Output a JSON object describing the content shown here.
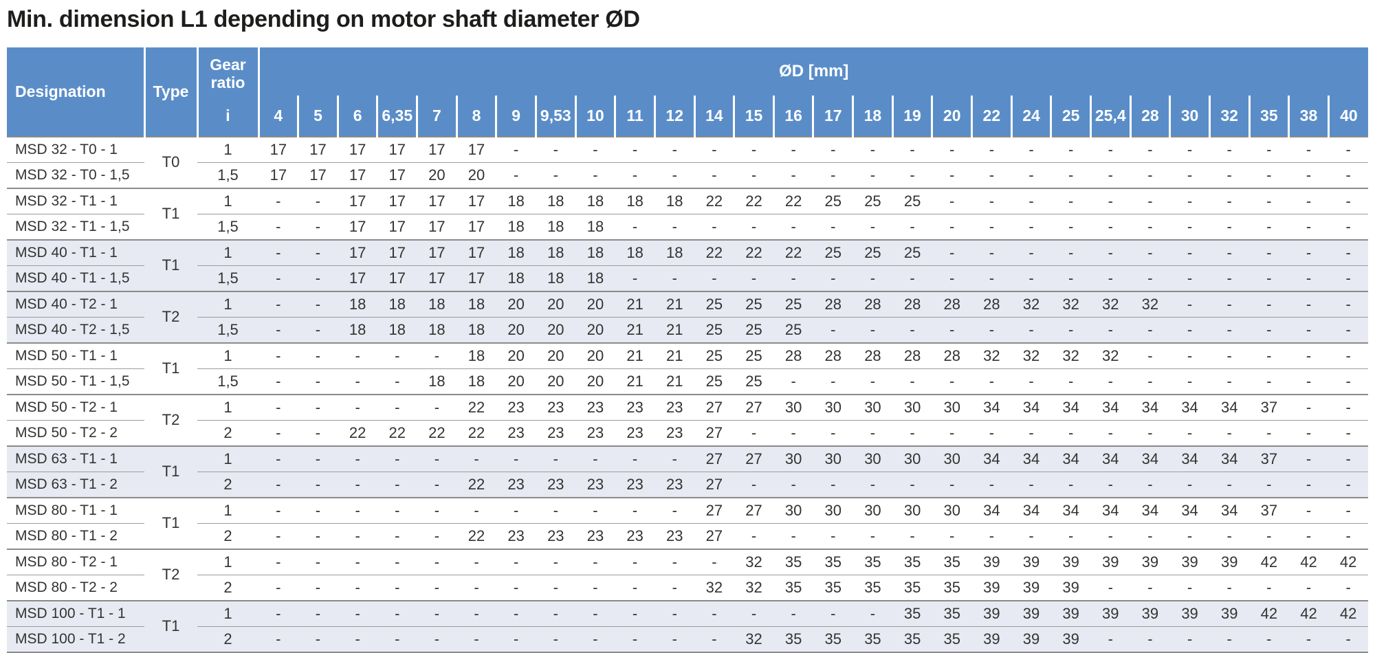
{
  "title": "Min. dimension L1 depending on motor shaft diameter ØD",
  "header": {
    "designation": "Designation",
    "type": "Type",
    "gear_ratio": "Gear ratio",
    "ratio_symbol": "i",
    "od_label": "ØD [mm]",
    "diameters": [
      "4",
      "5",
      "6",
      "6,35",
      "7",
      "8",
      "9",
      "9,53",
      "10",
      "11",
      "12",
      "14",
      "15",
      "16",
      "17",
      "18",
      "19",
      "20",
      "22",
      "24",
      "25",
      "25,4",
      "28",
      "30",
      "32",
      "35",
      "38",
      "40"
    ]
  },
  "groups": [
    {
      "type": "T0",
      "shaded": false,
      "rows": [
        {
          "designation": "MSD 32 - T0 - 1",
          "ratio": "1",
          "values": [
            "17",
            "17",
            "17",
            "17",
            "17",
            "17",
            "-",
            "-",
            "-",
            "-",
            "-",
            "-",
            "-",
            "-",
            "-",
            "-",
            "-",
            "-",
            "-",
            "-",
            "-",
            "-",
            "-",
            "-",
            "-",
            "-",
            "-",
            "-"
          ]
        },
        {
          "designation": "MSD 32 - T0 - 1,5",
          "ratio": "1,5",
          "values": [
            "17",
            "17",
            "17",
            "17",
            "20",
            "20",
            "-",
            "-",
            "-",
            "-",
            "-",
            "-",
            "-",
            "-",
            "-",
            "-",
            "-",
            "-",
            "-",
            "-",
            "-",
            "-",
            "-",
            "-",
            "-",
            "-",
            "-",
            "-"
          ]
        }
      ]
    },
    {
      "type": "T1",
      "shaded": false,
      "rows": [
        {
          "designation": "MSD 32 - T1 - 1",
          "ratio": "1",
          "values": [
            "-",
            "-",
            "17",
            "17",
            "17",
            "17",
            "18",
            "18",
            "18",
            "18",
            "18",
            "22",
            "22",
            "22",
            "25",
            "25",
            "25",
            "-",
            "-",
            "-",
            "-",
            "-",
            "-",
            "-",
            "-",
            "-",
            "-",
            "-"
          ]
        },
        {
          "designation": "MSD 32 - T1 - 1,5",
          "ratio": "1,5",
          "values": [
            "-",
            "-",
            "17",
            "17",
            "17",
            "17",
            "18",
            "18",
            "18",
            "-",
            "-",
            "-",
            "-",
            "-",
            "-",
            "-",
            "-",
            "-",
            "-",
            "-",
            "-",
            "-",
            "-",
            "-",
            "-",
            "-",
            "-",
            "-"
          ]
        }
      ]
    },
    {
      "type": "T1",
      "shaded": true,
      "rows": [
        {
          "designation": "MSD 40 - T1 - 1",
          "ratio": "1",
          "values": [
            "-",
            "-",
            "17",
            "17",
            "17",
            "17",
            "18",
            "18",
            "18",
            "18",
            "18",
            "22",
            "22",
            "22",
            "25",
            "25",
            "25",
            "-",
            "-",
            "-",
            "-",
            "-",
            "-",
            "-",
            "-",
            "-",
            "-",
            "-"
          ]
        },
        {
          "designation": "MSD 40 - T1 - 1,5",
          "ratio": "1,5",
          "values": [
            "-",
            "-",
            "17",
            "17",
            "17",
            "17",
            "18",
            "18",
            "18",
            "-",
            "-",
            "-",
            "-",
            "-",
            "-",
            "-",
            "-",
            "-",
            "-",
            "-",
            "-",
            "-",
            "-",
            "-",
            "-",
            "-",
            "-",
            "-"
          ]
        }
      ]
    },
    {
      "type": "T2",
      "shaded": true,
      "rows": [
        {
          "designation": "MSD 40 - T2 - 1",
          "ratio": "1",
          "values": [
            "-",
            "-",
            "18",
            "18",
            "18",
            "18",
            "20",
            "20",
            "20",
            "21",
            "21",
            "25",
            "25",
            "25",
            "28",
            "28",
            "28",
            "28",
            "28",
            "32",
            "32",
            "32",
            "32",
            "-",
            "-",
            "-",
            "-",
            "-"
          ]
        },
        {
          "designation": "MSD 40 - T2 - 1,5",
          "ratio": "1,5",
          "values": [
            "-",
            "-",
            "18",
            "18",
            "18",
            "18",
            "20",
            "20",
            "20",
            "21",
            "21",
            "25",
            "25",
            "25",
            "-",
            "-",
            "-",
            "-",
            "-",
            "-",
            "-",
            "-",
            "-",
            "-",
            "-",
            "-",
            "-",
            "-"
          ]
        }
      ]
    },
    {
      "type": "T1",
      "shaded": false,
      "rows": [
        {
          "designation": "MSD 50 - T1 - 1",
          "ratio": "1",
          "values": [
            "-",
            "-",
            "-",
            "-",
            "-",
            "18",
            "20",
            "20",
            "20",
            "21",
            "21",
            "25",
            "25",
            "28",
            "28",
            "28",
            "28",
            "28",
            "32",
            "32",
            "32",
            "32",
            "-",
            "-",
            "-",
            "-",
            "-",
            "-"
          ]
        },
        {
          "designation": "MSD 50 - T1 - 1,5",
          "ratio": "1,5",
          "values": [
            "-",
            "-",
            "-",
            "-",
            "18",
            "18",
            "20",
            "20",
            "20",
            "21",
            "21",
            "25",
            "25",
            "-",
            "-",
            "-",
            "-",
            "-",
            "-",
            "-",
            "-",
            "-",
            "-",
            "-",
            "-",
            "-",
            "-",
            "-"
          ]
        }
      ]
    },
    {
      "type": "T2",
      "shaded": false,
      "rows": [
        {
          "designation": "MSD 50 - T2 - 1",
          "ratio": "1",
          "values": [
            "-",
            "-",
            "-",
            "-",
            "-",
            "22",
            "23",
            "23",
            "23",
            "23",
            "23",
            "27",
            "27",
            "30",
            "30",
            "30",
            "30",
            "30",
            "34",
            "34",
            "34",
            "34",
            "34",
            "34",
            "34",
            "37",
            "-",
            "-"
          ]
        },
        {
          "designation": "MSD 50 - T2 - 2",
          "ratio": "2",
          "values": [
            "-",
            "-",
            "22",
            "22",
            "22",
            "22",
            "23",
            "23",
            "23",
            "23",
            "23",
            "27",
            "-",
            "-",
            "-",
            "-",
            "-",
            "-",
            "-",
            "-",
            "-",
            "-",
            "-",
            "-",
            "-",
            "-",
            "-",
            "-"
          ]
        }
      ]
    },
    {
      "type": "T1",
      "shaded": true,
      "rows": [
        {
          "designation": "MSD 63 - T1 - 1",
          "ratio": "1",
          "values": [
            "-",
            "-",
            "-",
            "-",
            "-",
            "-",
            "-",
            "-",
            "-",
            "-",
            "-",
            "27",
            "27",
            "30",
            "30",
            "30",
            "30",
            "30",
            "34",
            "34",
            "34",
            "34",
            "34",
            "34",
            "34",
            "37",
            "-",
            "-"
          ]
        },
        {
          "designation": "MSD 63 - T1 - 2",
          "ratio": "2",
          "values": [
            "-",
            "-",
            "-",
            "-",
            "-",
            "22",
            "23",
            "23",
            "23",
            "23",
            "23",
            "27",
            "-",
            "-",
            "-",
            "-",
            "-",
            "-",
            "-",
            "-",
            "-",
            "-",
            "-",
            "-",
            "-",
            "-",
            "-",
            "-"
          ]
        }
      ]
    },
    {
      "type": "T1",
      "shaded": false,
      "rows": [
        {
          "designation": "MSD 80 - T1 - 1",
          "ratio": "1",
          "values": [
            "-",
            "-",
            "-",
            "-",
            "-",
            "-",
            "-",
            "-",
            "-",
            "-",
            "-",
            "27",
            "27",
            "30",
            "30",
            "30",
            "30",
            "30",
            "34",
            "34",
            "34",
            "34",
            "34",
            "34",
            "34",
            "37",
            "-",
            "-"
          ]
        },
        {
          "designation": "MSD 80 - T1 - 2",
          "ratio": "2",
          "values": [
            "-",
            "-",
            "-",
            "-",
            "-",
            "22",
            "23",
            "23",
            "23",
            "23",
            "23",
            "27",
            "-",
            "-",
            "-",
            "-",
            "-",
            "-",
            "-",
            "-",
            "-",
            "-",
            "-",
            "-",
            "-",
            "-",
            "-",
            "-"
          ]
        }
      ]
    },
    {
      "type": "T2",
      "shaded": false,
      "rows": [
        {
          "designation": "MSD 80 - T2 - 1",
          "ratio": "1",
          "values": [
            "-",
            "-",
            "-",
            "-",
            "-",
            "-",
            "-",
            "-",
            "-",
            "-",
            "-",
            "-",
            "32",
            "35",
            "35",
            "35",
            "35",
            "35",
            "39",
            "39",
            "39",
            "39",
            "39",
            "39",
            "39",
            "42",
            "42",
            "42"
          ]
        },
        {
          "designation": "MSD 80 - T2 - 2",
          "ratio": "2",
          "values": [
            "-",
            "-",
            "-",
            "-",
            "-",
            "-",
            "-",
            "-",
            "-",
            "-",
            "-",
            "32",
            "32",
            "35",
            "35",
            "35",
            "35",
            "35",
            "39",
            "39",
            "39",
            "-",
            "-",
            "-",
            "-",
            "-",
            "-",
            "-"
          ]
        }
      ]
    },
    {
      "type": "T1",
      "shaded": true,
      "rows": [
        {
          "designation": "MSD 100 - T1 - 1",
          "ratio": "1",
          "values": [
            "-",
            "-",
            "-",
            "-",
            "-",
            "-",
            "-",
            "-",
            "-",
            "-",
            "-",
            "-",
            "-",
            "-",
            "-",
            "-",
            "35",
            "35",
            "39",
            "39",
            "39",
            "39",
            "39",
            "39",
            "39",
            "42",
            "42",
            "42"
          ]
        },
        {
          "designation": "MSD 100 - T1 - 2",
          "ratio": "2",
          "values": [
            "-",
            "-",
            "-",
            "-",
            "-",
            "-",
            "-",
            "-",
            "-",
            "-",
            "-",
            "-",
            "32",
            "35",
            "35",
            "35",
            "35",
            "35",
            "39",
            "39",
            "39",
            "-",
            "-",
            "-",
            "-",
            "-",
            "-",
            "-"
          ]
        }
      ]
    }
  ],
  "colors": {
    "header_bg": "#5A8DC8",
    "header_text": "#FFFFFF",
    "shaded_row_bg": "#E7EAF3",
    "row_line": "#9B9B9B",
    "group_line": "#8A8A8A",
    "title_text": "#1D1D1B",
    "body_text": "#333331",
    "page_bg": "#FFFFFF"
  }
}
